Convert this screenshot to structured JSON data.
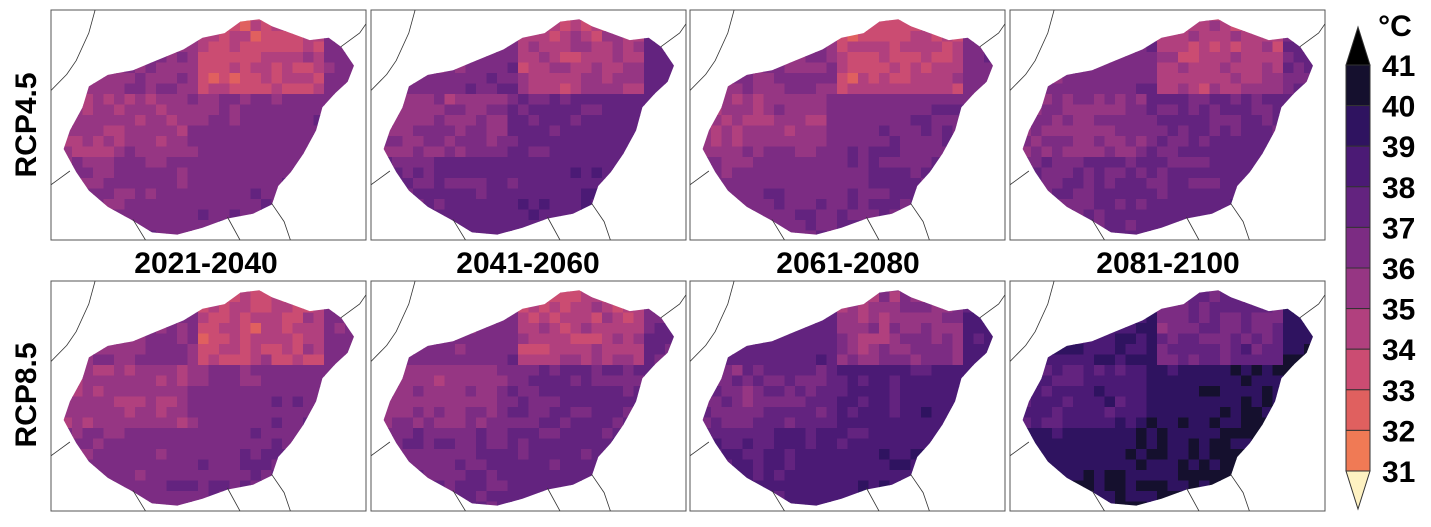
{
  "figure": {
    "row_labels": [
      "RCP4.5",
      "RCP8.5"
    ],
    "period_labels": [
      "2021-2040",
      "2041-2060",
      "2061-2080",
      "2081-2100"
    ]
  },
  "colorbar": {
    "unit": "°C",
    "ticks": [
      "41",
      "40",
      "39",
      "38",
      "37",
      "36",
      "35",
      "34",
      "33",
      "32",
      "31"
    ],
    "colors": [
      "#15102e",
      "#2f1360",
      "#4b1a75",
      "#63237f",
      "#7c2c83",
      "#963683",
      "#b1407e",
      "#cb4c72",
      "#e0605f",
      "#f07a55",
      "#f7a26a",
      "#fdce93",
      "#fef2c2"
    ],
    "extend": "both"
  },
  "panels": [
    {
      "scenario": "RCP4.5",
      "period": "2021-2040",
      "base_level": 36.2,
      "east_south_shift": 1.1
    },
    {
      "scenario": "RCP4.5",
      "period": "2041-2060",
      "base_level": 37.0,
      "east_south_shift": 1.6
    },
    {
      "scenario": "RCP4.5",
      "period": "2061-2080",
      "base_level": 36.4,
      "east_south_shift": 1.4
    },
    {
      "scenario": "RCP4.5",
      "period": "2081-2100",
      "base_level": 36.9,
      "east_south_shift": 1.2
    },
    {
      "scenario": "RCP8.5",
      "period": "2021-2040",
      "base_level": 36.3,
      "east_south_shift": 1.0
    },
    {
      "scenario": "RCP8.5",
      "period": "2041-2060",
      "base_level": 36.8,
      "east_south_shift": 1.4
    },
    {
      "scenario": "RCP8.5",
      "period": "2061-2080",
      "base_level": 38.0,
      "east_south_shift": 1.7
    },
    {
      "scenario": "RCP8.5",
      "period": "2081-2100",
      "base_level": 39.4,
      "east_south_shift": 1.5
    }
  ]
}
